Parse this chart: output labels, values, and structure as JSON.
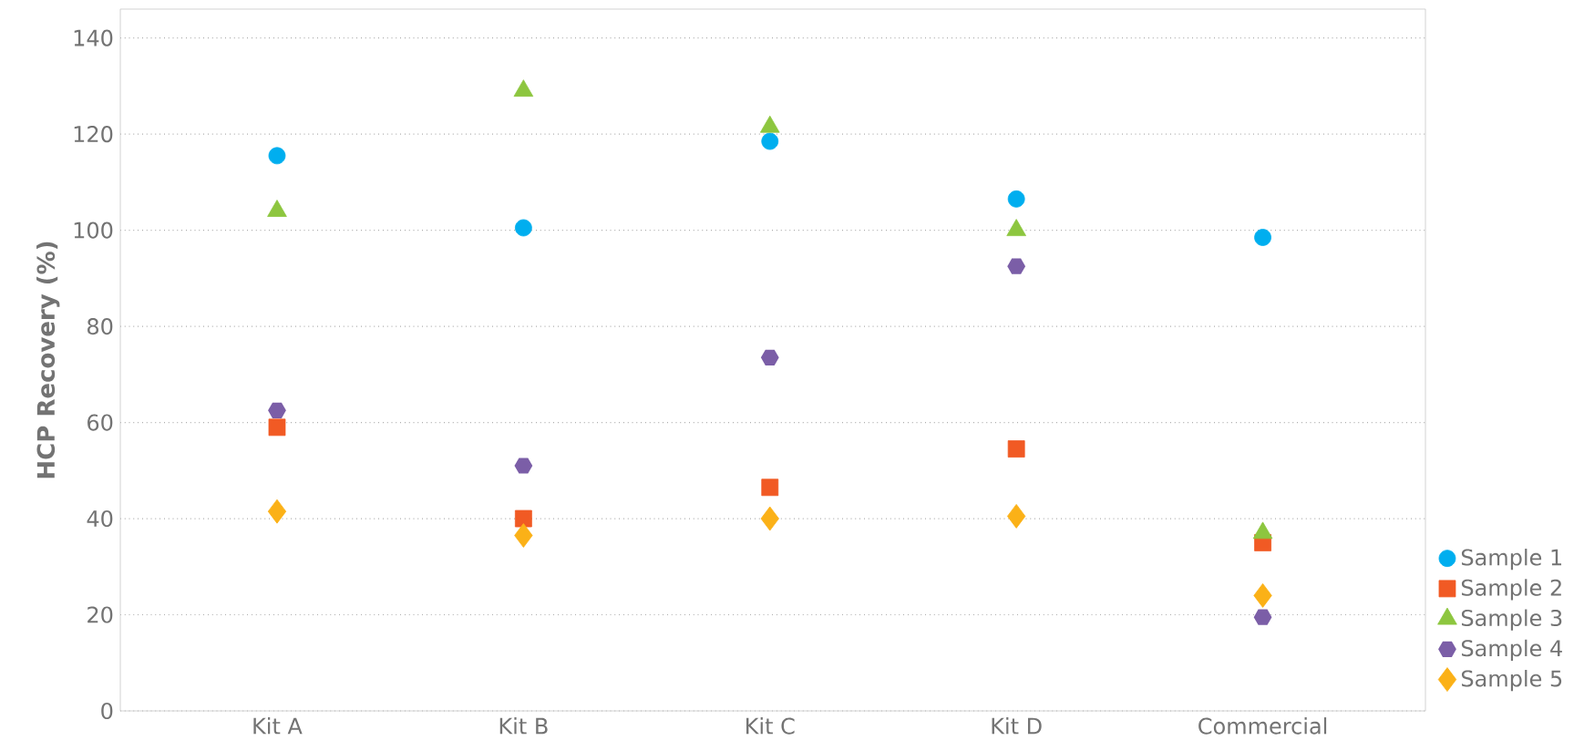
{
  "chart_data": {
    "type": "scatter",
    "ylabel": "HCP Recovery (%)",
    "categories": [
      "Kit A",
      "Kit B",
      "Kit C",
      "Kit D",
      "Commercial"
    ],
    "series": [
      {
        "name": "Sample 1",
        "color": "#00aeef",
        "marker": "circle",
        "values": [
          115.5,
          100.5,
          118.5,
          106.5,
          98.5
        ]
      },
      {
        "name": "Sample 2",
        "color": "#f15a24",
        "marker": "square",
        "values": [
          59,
          40,
          46.5,
          54.5,
          35
        ]
      },
      {
        "name": "Sample 3",
        "color": "#8dc63f",
        "marker": "triangle",
        "values": [
          104,
          129,
          121.5,
          100,
          37
        ]
      },
      {
        "name": "Sample 4",
        "color": "#7b5ea7",
        "values": [
          62.5,
          51,
          73.5,
          92.5,
          19.5
        ]
      },
      {
        "name": "Sample 5",
        "color": "#fbb117",
        "marker": "diamond",
        "values": [
          41.5,
          36.5,
          40,
          40.5,
          24
        ]
      }
    ],
    "ylim": [
      0,
      146
    ],
    "yticks": [
      0,
      20,
      40,
      60,
      80,
      100,
      120,
      140
    ],
    "grid": "y",
    "legend": "right"
  }
}
